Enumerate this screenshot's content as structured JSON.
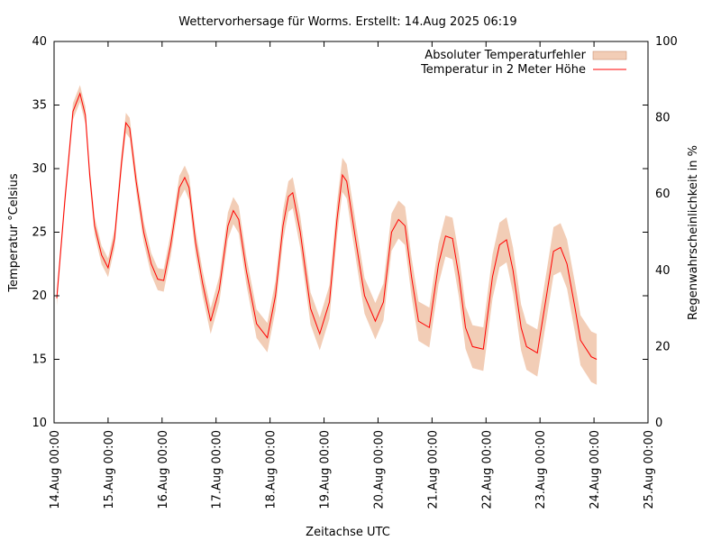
{
  "chart_data": {
    "type": "line",
    "title": "Wettervorhersage für Worms. Erstellt: 14.Aug 2025 06:19",
    "xlabel": "Zeitachse UTC",
    "ylabel": "Temperatur °Celsius",
    "y2label": "Regenwahrscheinlichkeit in %",
    "xlim": [
      0,
      11
    ],
    "ylim": [
      10,
      40
    ],
    "y2lim": [
      0,
      100
    ],
    "x_ticks": [
      "14.Aug 00:00",
      "15.Aug 00:00",
      "16.Aug 00:00",
      "17.Aug 00:00",
      "18.Aug 00:00",
      "19.Aug 00:00",
      "20.Aug 00:00",
      "21.Aug 00:00",
      "22.Aug 00:00",
      "23.Aug 00:00",
      "24.Aug 00:00",
      "25.Aug 00:00"
    ],
    "y_ticks": [
      10,
      15,
      20,
      25,
      30,
      35,
      40
    ],
    "y2_ticks": [
      0,
      20,
      40,
      60,
      80,
      100
    ],
    "grid": false,
    "legend_position": "top-right",
    "series": [
      {
        "name": "Temperatur in 2 Meter Höhe",
        "color": "#ff0000",
        "axis": "left",
        "x": [
          0.05,
          0.2,
          0.35,
          0.48,
          0.58,
          0.66,
          0.75,
          0.88,
          1.0,
          1.12,
          1.25,
          1.33,
          1.4,
          1.52,
          1.66,
          1.8,
          1.92,
          2.03,
          2.16,
          2.32,
          2.42,
          2.5,
          2.62,
          2.75,
          2.9,
          3.06,
          3.22,
          3.32,
          3.42,
          3.56,
          3.75,
          3.95,
          4.1,
          4.24,
          4.34,
          4.42,
          4.56,
          4.75,
          4.92,
          5.1,
          5.24,
          5.34,
          5.42,
          5.6,
          5.75,
          5.95,
          6.1,
          6.25,
          6.38,
          6.5,
          6.62,
          6.75,
          6.95,
          7.12,
          7.25,
          7.38,
          7.5,
          7.62,
          7.75,
          7.95,
          8.12,
          8.25,
          8.38,
          8.5,
          8.65,
          8.75,
          8.95,
          9.12,
          9.25,
          9.38,
          9.5,
          9.65,
          9.75,
          9.95,
          10.05
        ],
        "values": [
          19.8,
          27.5,
          34.5,
          35.9,
          34.2,
          29.5,
          25.5,
          23.2,
          22.2,
          24.5,
          30.5,
          33.6,
          33.2,
          29.0,
          25.0,
          22.5,
          21.3,
          21.2,
          24.0,
          28.5,
          29.3,
          28.5,
          24.2,
          21.0,
          18.0,
          20.5,
          25.5,
          26.7,
          26.0,
          22.0,
          17.8,
          16.7,
          20.0,
          25.5,
          27.8,
          28.1,
          25.0,
          19.0,
          17.0,
          19.5,
          26.0,
          29.5,
          29.0,
          24.0,
          20.0,
          18.0,
          19.5,
          25.0,
          26.0,
          25.5,
          21.5,
          18.0,
          17.5,
          22.5,
          24.7,
          24.5,
          21.5,
          17.5,
          16.0,
          15.8,
          21.5,
          24.0,
          24.4,
          22.0,
          17.5,
          16.0,
          15.5,
          20.0,
          23.5,
          23.8,
          22.5,
          19.0,
          16.5,
          15.2,
          15.0
        ]
      }
    ]
  }
}
